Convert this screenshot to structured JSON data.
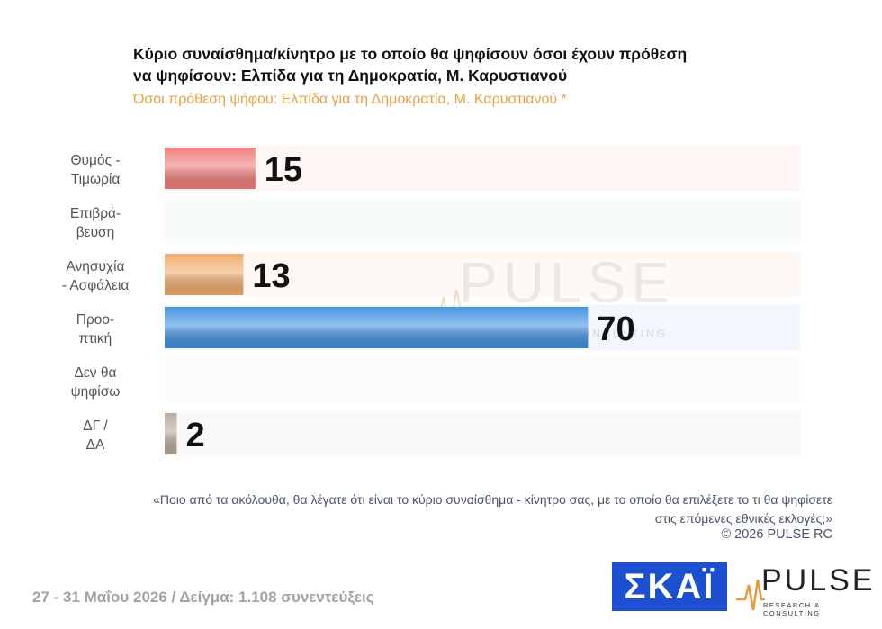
{
  "header": {
    "title": "Κύριο συναίσθημα/κίνητρο με το οποίο θα ψηφίσουν όσοι έχουν πρόθεση να ψηφίσουν: Ελπίδα για τη Δημοκρατία, Μ. Καρυστιανού",
    "subtitle": "Όσοι πρόθεση ψήφου: Ελπίδα για τη Δημοκρατία, Μ. Καρυστιανού *"
  },
  "chart_data": {
    "type": "bar",
    "orientation": "horizontal",
    "categories": [
      [
        "Θυμός -",
        "Τιμωρία"
      ],
      [
        "Επιβρά-",
        "βευση"
      ],
      [
        "Ανησυχία",
        "- Ασφάλεια"
      ],
      [
        "Προο-",
        "πτική"
      ],
      [
        "Δεν θα",
        "ψηφίσω"
      ],
      [
        "ΔΓ /",
        "ΔΑ"
      ]
    ],
    "values": [
      15,
      null,
      13,
      70,
      null,
      2
    ],
    "value_labels": [
      "15",
      "",
      "13",
      "70",
      "",
      "2"
    ],
    "colors": [
      "#f07a78",
      "#8fd0c8",
      "#f0a96a",
      "#3d8fe0",
      "#cccccc",
      "#b5a89a"
    ],
    "xlim": [
      0,
      100
    ],
    "grid": false,
    "legend": "none"
  },
  "watermark": {
    "text": "PULSE",
    "subtext": "RESEARCH & CONSULTING"
  },
  "footer": {
    "question": "«Ποιο από τα ακόλουθα, θα λέγατε ότι είναι το κύριο συναίσθημα - κίνητρο σας, με το οποίο θα επιλέξετε το τι θα ψηφίσετε στις επόμενες εθνικές εκλογές;»",
    "copyright": "© 2026 PULSE RC",
    "date_sample": "27 - 31 Μαΐου 2026 / Δείγμα: 1.108 συνεντεύξεις",
    "skai_logo": "ΣΚΑΪ",
    "pulse_logo": "PULSE",
    "pulse_tagline": "RESEARCH & CONSULTING"
  }
}
